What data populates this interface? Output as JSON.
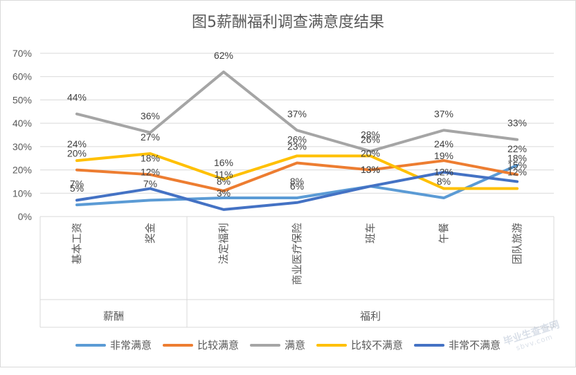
{
  "chart_data": {
    "type": "line",
    "title": "图5薪酬福利调查满意度结果",
    "categories": [
      "基本工资",
      "奖金",
      "法定福利",
      "商业医疗保险",
      "班车",
      "午餐",
      "团队旅游"
    ],
    "groups": [
      {
        "label": "薪酬",
        "count": 2
      },
      {
        "label": "福利",
        "count": 5
      }
    ],
    "ylim": [
      0,
      70
    ],
    "yticks": [
      "0%",
      "10%",
      "20%",
      "30%",
      "40%",
      "50%",
      "60%",
      "70%"
    ],
    "grid": true,
    "legend_position": "bottom",
    "series": [
      {
        "name": "非常满意",
        "color": "#5B9BD5",
        "values": [
          5,
          7,
          8,
          8,
          13,
          8,
          22
        ],
        "labels": [
          "5%",
          "7%",
          "8%",
          "8%",
          "13%",
          "8%",
          "22%"
        ]
      },
      {
        "name": "比较满意",
        "color": "#ED7D31",
        "values": [
          20,
          18,
          11,
          23,
          20,
          24,
          18
        ],
        "labels": [
          "20%",
          "18%",
          "11%",
          "23%",
          "20%",
          "24%",
          "18%"
        ]
      },
      {
        "name": "满意",
        "color": "#A5A5A5",
        "values": [
          44,
          36,
          62,
          37,
          28,
          37,
          33
        ],
        "labels": [
          "44%",
          "36%",
          "62%",
          "37%",
          "28%",
          "37%",
          "33%"
        ]
      },
      {
        "name": "比较不满意",
        "color": "#FFC000",
        "values": [
          24,
          27,
          16,
          26,
          26,
          12,
          12
        ],
        "labels": [
          "24%",
          "27%",
          "16%",
          "26%",
          "26%",
          "12%",
          "12%"
        ]
      },
      {
        "name": "非常不满意",
        "color": "#4472C4",
        "values": [
          7,
          12,
          3,
          6,
          13,
          19,
          15
        ],
        "labels": [
          "7%",
          "12%",
          "3%",
          "6%",
          "13%",
          "19%",
          "15%"
        ]
      }
    ]
  },
  "watermark": {
    "line1": "毕业生查查网",
    "line2": "sbvv.com"
  }
}
